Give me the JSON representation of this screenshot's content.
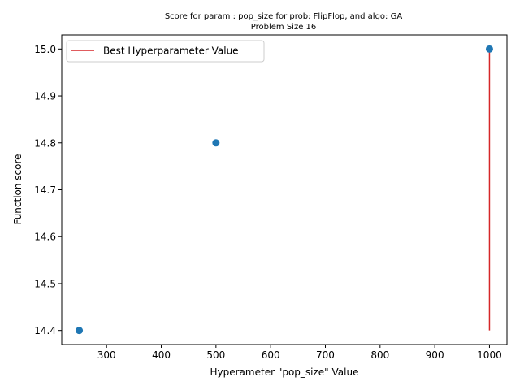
{
  "chart_data": {
    "type": "scatter",
    "title_line1": "Score for param : pop_size for prob: FlipFlop, and algo: GA",
    "title_line2": "Problem Size 16",
    "xlabel": "Hyperameter \"pop_size\" Value",
    "ylabel": "Function score",
    "xlim": [
      218,
      1032
    ],
    "ylim": [
      14.37,
      15.03
    ],
    "x_ticks": [
      300,
      400,
      500,
      600,
      700,
      800,
      900,
      1000
    ],
    "y_ticks": [
      14.4,
      14.5,
      14.6,
      14.7,
      14.8,
      14.9,
      15.0
    ],
    "x_tick_labels": [
      "300",
      "400",
      "500",
      "600",
      "700",
      "800",
      "900",
      "1000"
    ],
    "y_tick_labels": [
      "14.4",
      "14.5",
      "14.6",
      "14.7",
      "14.8",
      "14.9",
      "15.0"
    ],
    "series": [
      {
        "x": [
          250,
          500,
          1000
        ],
        "y": [
          14.4,
          14.8,
          15.0
        ],
        "color": "#1f77b4"
      }
    ],
    "best_line": {
      "name": "Best Hyperparameter Value",
      "x": 1000,
      "y_range": [
        14.4,
        15.0
      ],
      "color": "#d62728"
    },
    "legend_position": "upper-left",
    "grid": false
  }
}
